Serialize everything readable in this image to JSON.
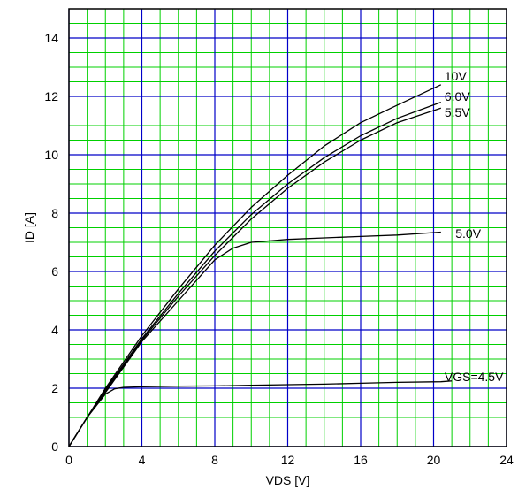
{
  "chart_data": {
    "type": "line",
    "xlabel": "VDS [V]",
    "ylabel": "ID [A]",
    "xlim": [
      0,
      24
    ],
    "ylim": [
      0,
      15
    ],
    "x_major_ticks": [
      0,
      4,
      8,
      12,
      16,
      20,
      24
    ],
    "y_major_ticks": [
      0,
      2,
      4,
      6,
      8,
      10,
      12,
      14
    ],
    "x_minor_step": 1,
    "y_minor_step": 0.5,
    "grid": true,
    "colors": {
      "minor_grid": "#00d000",
      "major_grid": "#0000c8",
      "series": "#000000",
      "frame": "#000000"
    },
    "series": [
      {
        "name": "10V",
        "x": [
          0,
          1,
          2,
          4,
          6,
          8,
          10,
          12,
          14,
          16,
          18,
          20.4
        ],
        "y": [
          0,
          1.0,
          2.0,
          3.8,
          5.4,
          6.9,
          8.2,
          9.3,
          10.3,
          11.1,
          11.7,
          12.4
        ]
      },
      {
        "name": "6.0V",
        "x": [
          0,
          1,
          2,
          4,
          6,
          8,
          10,
          12,
          14,
          16,
          18,
          20.4
        ],
        "y": [
          0,
          1.0,
          1.95,
          3.7,
          5.25,
          6.7,
          7.95,
          9.0,
          9.9,
          10.65,
          11.25,
          11.8
        ]
      },
      {
        "name": "5.5V",
        "x": [
          0,
          1,
          2,
          4,
          6,
          8,
          10,
          12,
          14,
          16,
          18,
          20.4
        ],
        "y": [
          0,
          1.0,
          1.9,
          3.65,
          5.15,
          6.55,
          7.8,
          8.85,
          9.75,
          10.5,
          11.1,
          11.6
        ]
      },
      {
        "name": "5.0V",
        "x": [
          0,
          1,
          2,
          4,
          6,
          8,
          9,
          10,
          11,
          12,
          14,
          16,
          18,
          20.4
        ],
        "y": [
          0,
          1.0,
          1.85,
          3.6,
          5.0,
          6.4,
          6.8,
          7.0,
          7.05,
          7.1,
          7.15,
          7.2,
          7.25,
          7.35
        ]
      },
      {
        "name": "VGS=4.5V",
        "x": [
          0,
          1,
          2,
          2.5,
          3,
          4,
          6,
          8,
          10,
          12,
          14,
          16,
          18,
          20.4,
          21
        ],
        "y": [
          0,
          1.0,
          1.8,
          1.98,
          2.03,
          2.05,
          2.07,
          2.08,
          2.1,
          2.12,
          2.14,
          2.17,
          2.2,
          2.22,
          2.25
        ]
      }
    ],
    "annotations": [
      {
        "text": "10V",
        "x": 20.6,
        "y": 12.7
      },
      {
        "text": "6.0V",
        "x": 20.6,
        "y": 12.0
      },
      {
        "text": "5.5V",
        "x": 20.6,
        "y": 11.45
      },
      {
        "text": "5.0V",
        "x": 21.2,
        "y": 7.3
      },
      {
        "text": "VGS=4.5V",
        "x": 20.6,
        "y": 2.4
      }
    ]
  }
}
